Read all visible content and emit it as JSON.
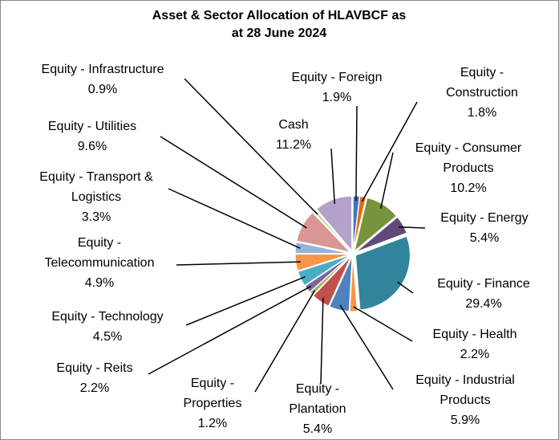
{
  "chart_data": {
    "type": "pie",
    "title": "Asset & Sector Allocation of HLAVBCF as at 28 June 2024",
    "categories": [
      "Equity - Foreign",
      "Equity - Construction",
      "Equity - Consumer Products",
      "Equity - Energy",
      "Equity - Finance",
      "Equity - Health",
      "Equity - Industrial Products",
      "Equity - Plantation",
      "Equity - Properties",
      "Equity - Reits",
      "Equity - Technology",
      "Equity - Telecommunication",
      "Equity - Transport & Logistics",
      "Equity - Utilities",
      "Equity - Infrastructure",
      "Cash"
    ],
    "values": [
      1.9,
      1.8,
      10.2,
      5.4,
      29.4,
      2.2,
      5.9,
      5.4,
      1.2,
      2.2,
      4.5,
      4.9,
      3.3,
      9.6,
      0.9,
      11.2
    ],
    "value_labels": [
      "1.9%",
      "1.8%",
      "10.2%",
      "5.4%",
      "29.4%",
      "2.2%",
      "5.9%",
      "5.4%",
      "1.2%",
      "2.2%",
      "4.5%",
      "4.9%",
      "3.3%",
      "9.6%",
      "0.9%",
      "11.2%"
    ],
    "colors": [
      "#4472c4",
      "#e46c0a",
      "#77933c",
      "#604a7b",
      "#31849b",
      "#f79646",
      "#4f81bd",
      "#c0504d",
      "#9bbb59",
      "#8064a2",
      "#4bacc6",
      "#f79646",
      "#95b3d7",
      "#d99694",
      "#c3d69b",
      "#b3a2c7"
    ]
  }
}
